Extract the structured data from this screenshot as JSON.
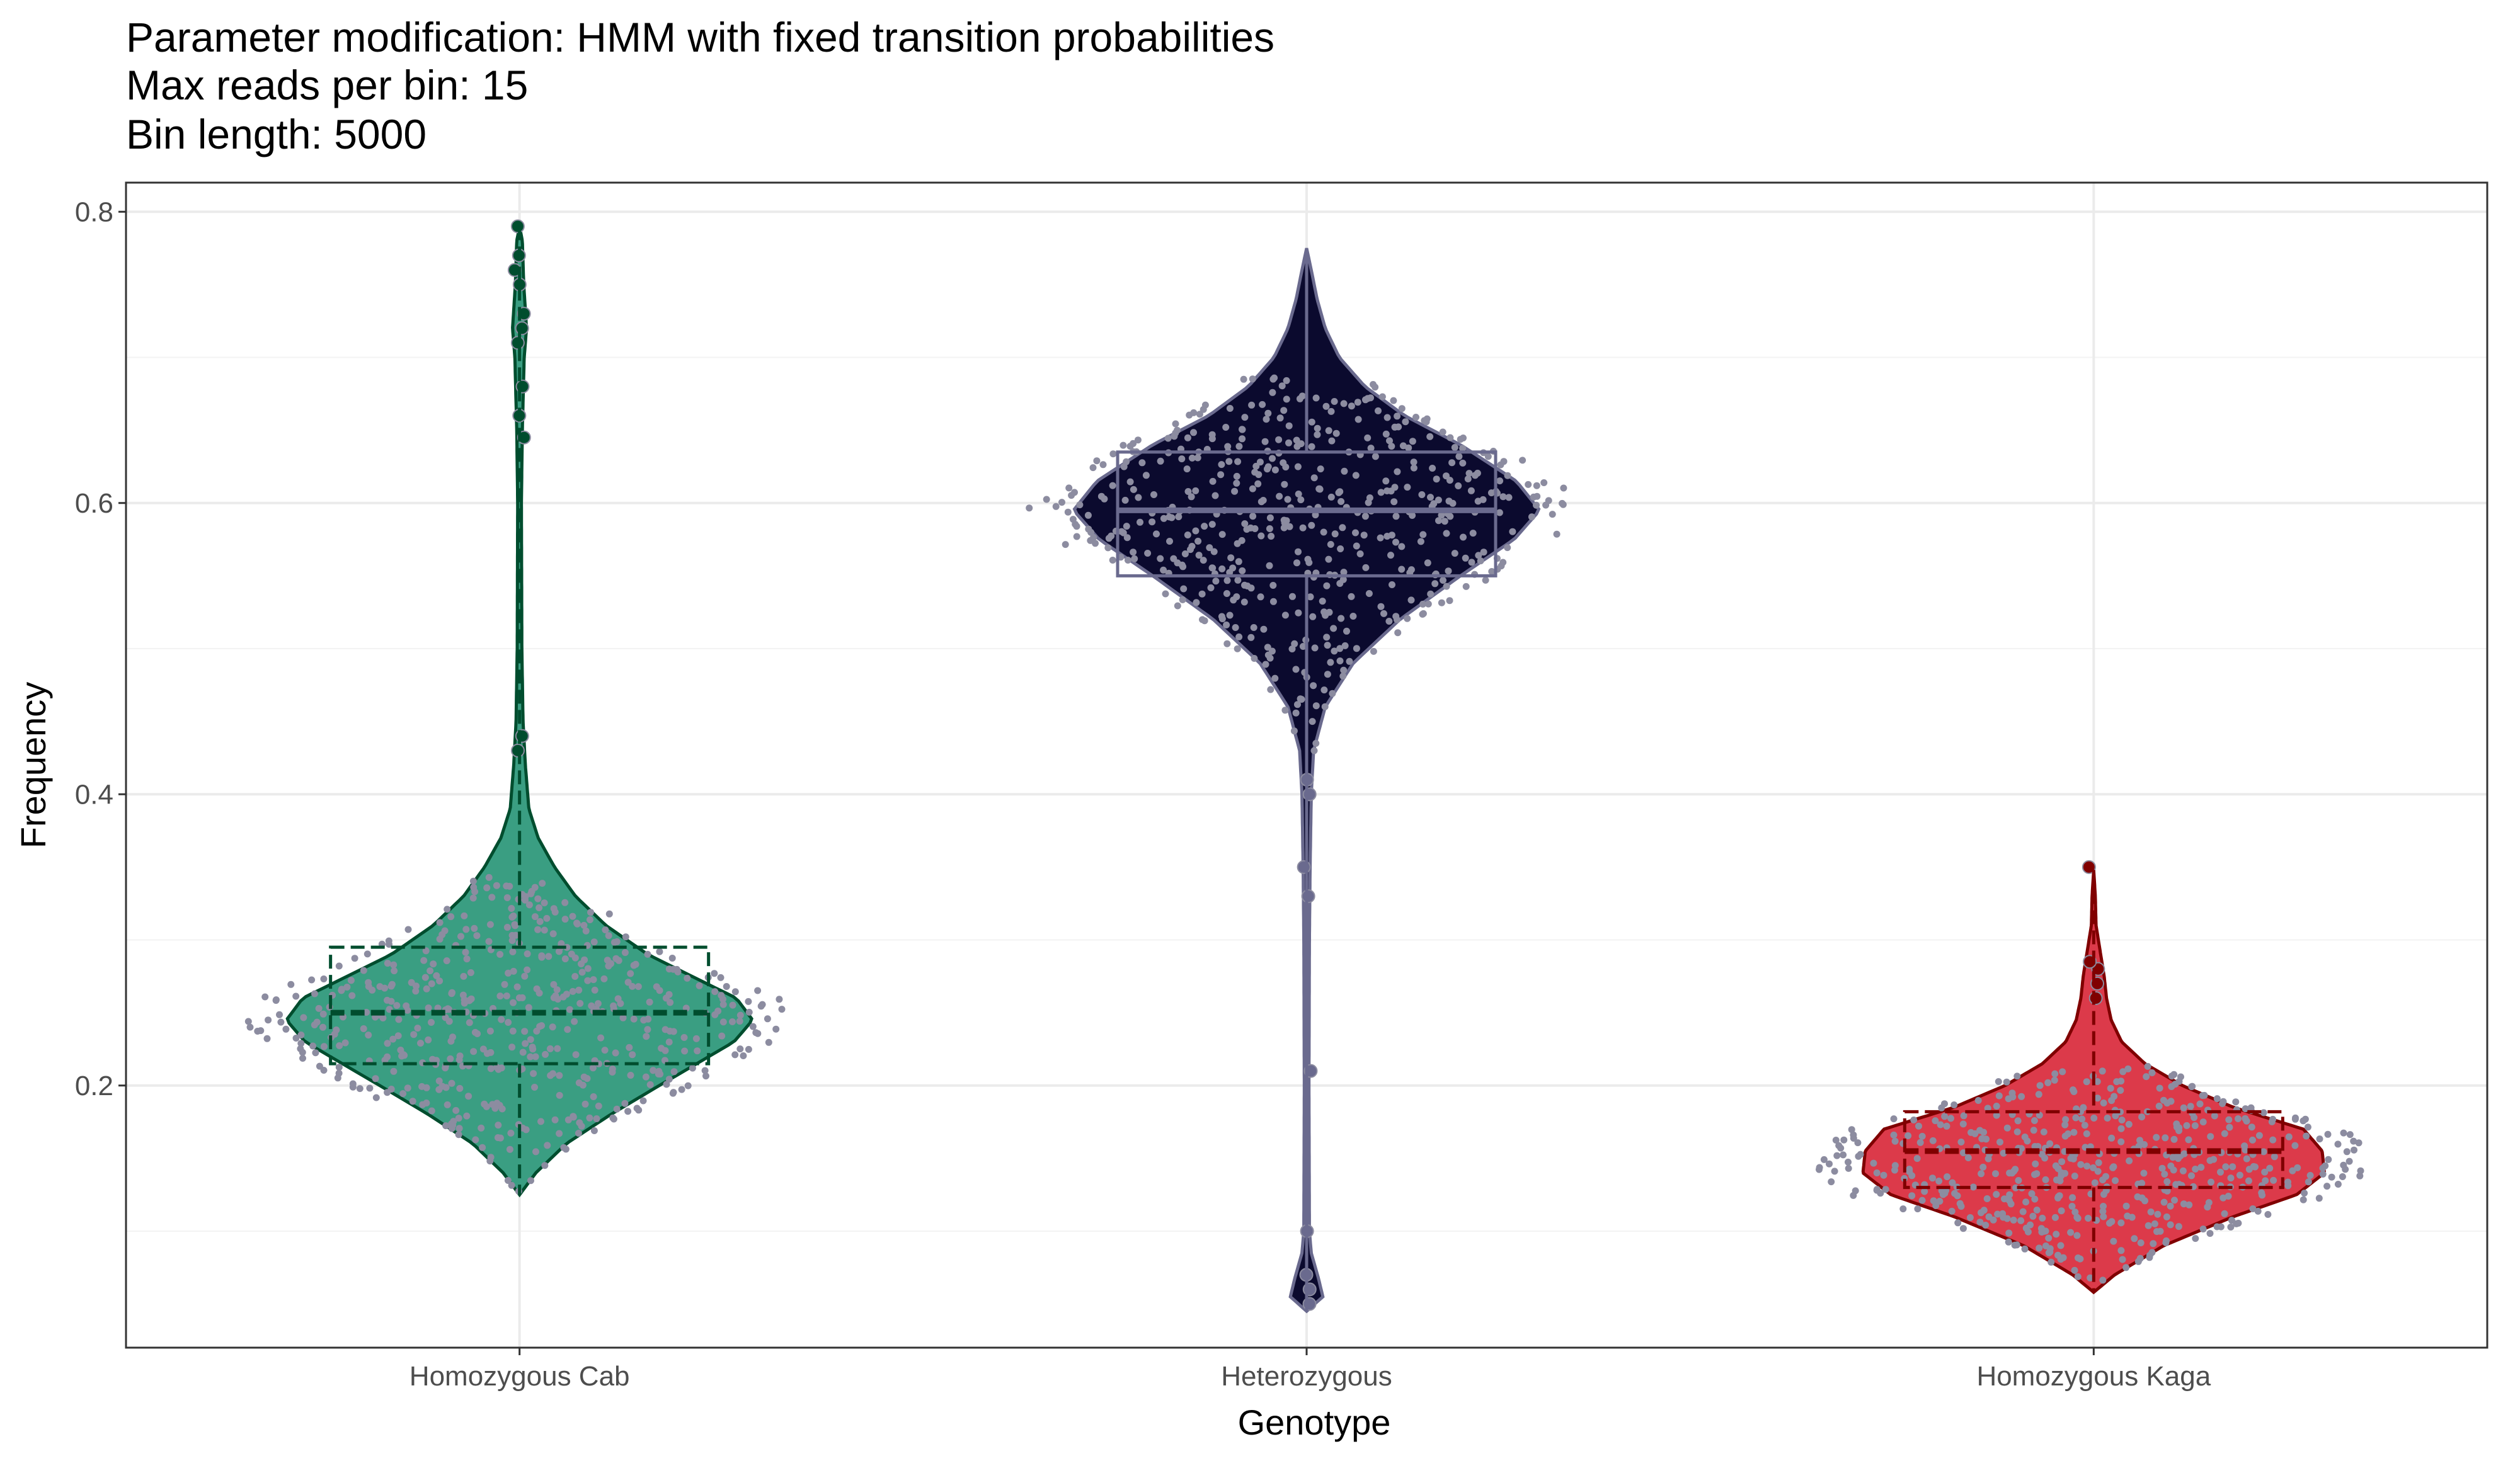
{
  "chart_data": {
    "type": "violin",
    "title_lines": [
      "Parameter modification: HMM with fixed transition probabilities",
      "Max reads per bin: 15",
      "Bin length: 5000"
    ],
    "xlabel": "Genotype",
    "ylabel": "Frequency",
    "categories": [
      "Homozygous Cab",
      "Heterozygous",
      "Homozygous Kaga"
    ],
    "ylim": [
      0.02,
      0.82
    ],
    "yticks": [
      0.2,
      0.4,
      0.6,
      0.8
    ],
    "ytick_labels": [
      "0.2",
      "0.4",
      "0.6",
      "0.8"
    ],
    "grid": true,
    "legend": "none",
    "overlay": [
      "violin",
      "boxplot",
      "jittered points"
    ],
    "series": [
      {
        "category": "Homozygous Cab",
        "fill": "#3a9e82",
        "line": "#004d2e",
        "min": 0.125,
        "q1": 0.215,
        "median": 0.25,
        "q3": 0.295,
        "max": 0.79,
        "density": [
          [
            0.125,
            0.0
          ],
          [
            0.14,
            0.07
          ],
          [
            0.16,
            0.2
          ],
          [
            0.18,
            0.39
          ],
          [
            0.2,
            0.6
          ],
          [
            0.215,
            0.76
          ],
          [
            0.23,
            0.92
          ],
          [
            0.245,
            1.0
          ],
          [
            0.26,
            0.93
          ],
          [
            0.275,
            0.74
          ],
          [
            0.29,
            0.55
          ],
          [
            0.31,
            0.37
          ],
          [
            0.33,
            0.24
          ],
          [
            0.35,
            0.15
          ],
          [
            0.37,
            0.08
          ],
          [
            0.39,
            0.04
          ],
          [
            0.42,
            0.025
          ],
          [
            0.45,
            0.015
          ],
          [
            0.5,
            0.01
          ],
          [
            0.6,
            0.008
          ],
          [
            0.65,
            0.012
          ],
          [
            0.7,
            0.02
          ],
          [
            0.72,
            0.03
          ],
          [
            0.75,
            0.018
          ],
          [
            0.78,
            0.012
          ],
          [
            0.79,
            0.0
          ]
        ],
        "outliers": [
          0.43,
          0.44,
          0.645,
          0.66,
          0.68,
          0.71,
          0.72,
          0.73,
          0.75,
          0.76,
          0.77,
          0.79
        ]
      },
      {
        "category": "Heterozygous",
        "fill": "#0b0a2e",
        "line": "#6a6a8e",
        "min": 0.045,
        "q1": 0.55,
        "median": 0.595,
        "q3": 0.635,
        "max": 0.775,
        "density": [
          [
            0.045,
            0.0
          ],
          [
            0.055,
            0.07
          ],
          [
            0.068,
            0.05
          ],
          [
            0.085,
            0.02
          ],
          [
            0.1,
            0.012
          ],
          [
            0.2,
            0.01
          ],
          [
            0.3,
            0.012
          ],
          [
            0.35,
            0.015
          ],
          [
            0.4,
            0.02
          ],
          [
            0.43,
            0.03
          ],
          [
            0.46,
            0.08
          ],
          [
            0.49,
            0.2
          ],
          [
            0.52,
            0.4
          ],
          [
            0.55,
            0.66
          ],
          [
            0.575,
            0.89
          ],
          [
            0.595,
            1.0
          ],
          [
            0.615,
            0.9
          ],
          [
            0.64,
            0.66
          ],
          [
            0.66,
            0.42
          ],
          [
            0.68,
            0.25
          ],
          [
            0.7,
            0.14
          ],
          [
            0.72,
            0.08
          ],
          [
            0.74,
            0.045
          ],
          [
            0.76,
            0.02
          ],
          [
            0.775,
            0.0
          ]
        ],
        "outliers": [
          0.05,
          0.06,
          0.07,
          0.1,
          0.21,
          0.33,
          0.35,
          0.4,
          0.41
        ]
      },
      {
        "category": "Homozygous Kaga",
        "fill": "#dc3a4a",
        "line": "#800000",
        "min": 0.058,
        "q1": 0.13,
        "median": 0.155,
        "q3": 0.182,
        "max": 0.348,
        "density": [
          [
            0.058,
            0.0
          ],
          [
            0.07,
            0.09
          ],
          [
            0.09,
            0.3
          ],
          [
            0.11,
            0.6
          ],
          [
            0.125,
            0.87
          ],
          [
            0.14,
            0.99
          ],
          [
            0.155,
            0.98
          ],
          [
            0.17,
            0.9
          ],
          [
            0.185,
            0.6
          ],
          [
            0.2,
            0.38
          ],
          [
            0.215,
            0.22
          ],
          [
            0.23,
            0.12
          ],
          [
            0.245,
            0.075
          ],
          [
            0.26,
            0.055
          ],
          [
            0.275,
            0.045
          ],
          [
            0.29,
            0.03
          ],
          [
            0.31,
            0.01
          ],
          [
            0.33,
            0.007
          ],
          [
            0.348,
            0.0
          ]
        ],
        "outliers": [
          0.26,
          0.27,
          0.28,
          0.285,
          0.35
        ]
      }
    ]
  }
}
